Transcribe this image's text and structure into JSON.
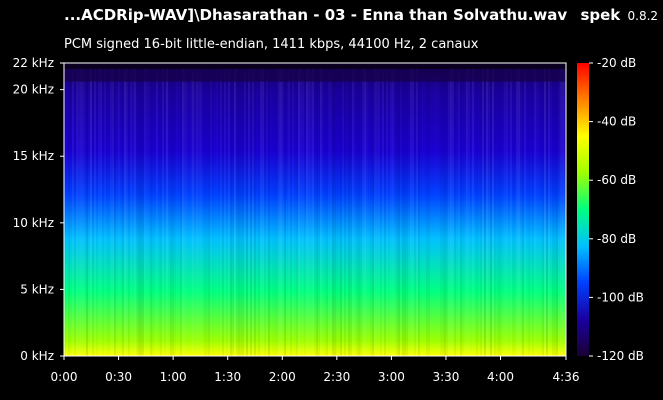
{
  "header": {
    "file_title": "...ACDRip-WAV]\\Dhasarathan - 03 - Enna than Solvathu.wav",
    "app_name": "spek",
    "app_version": "0.8.2",
    "info": "PCM signed 16-bit little-endian, 1411 kbps, 44100 Hz, 2 canaux"
  },
  "chart_data": {
    "type": "heatmap",
    "title": "",
    "xlabel": "",
    "ylabel": "",
    "x_ticks": [
      "0:00",
      "0:30",
      "1:00",
      "1:30",
      "2:00",
      "2:30",
      "3:00",
      "3:30",
      "4:00",
      "4:36"
    ],
    "x_tick_seconds": [
      0,
      30,
      60,
      90,
      120,
      150,
      180,
      210,
      240,
      276
    ],
    "xlim": [
      0,
      276
    ],
    "y_ticks": [
      "0 kHz",
      "5 kHz",
      "10 kHz",
      "15 kHz",
      "20 kHz",
      "22 kHz"
    ],
    "y_tick_khz": [
      0,
      5,
      10,
      15,
      20,
      22
    ],
    "ylim": [
      0,
      22
    ],
    "colorbar": {
      "ticks": [
        "-20 dB",
        "-40 dB",
        "-60 dB",
        "-80 dB",
        "-100 dB",
        "-120 dB"
      ],
      "tick_db": [
        -20,
        -40,
        -60,
        -80,
        -100,
        -120
      ],
      "range_db": [
        -120,
        -20
      ],
      "colors": [
        "#1a0033",
        "#1a00a0",
        "#0040ff",
        "#00c0ff",
        "#00ff80",
        "#a0ff00",
        "#ffff00",
        "#ff8000",
        "#ff0000"
      ]
    }
  }
}
